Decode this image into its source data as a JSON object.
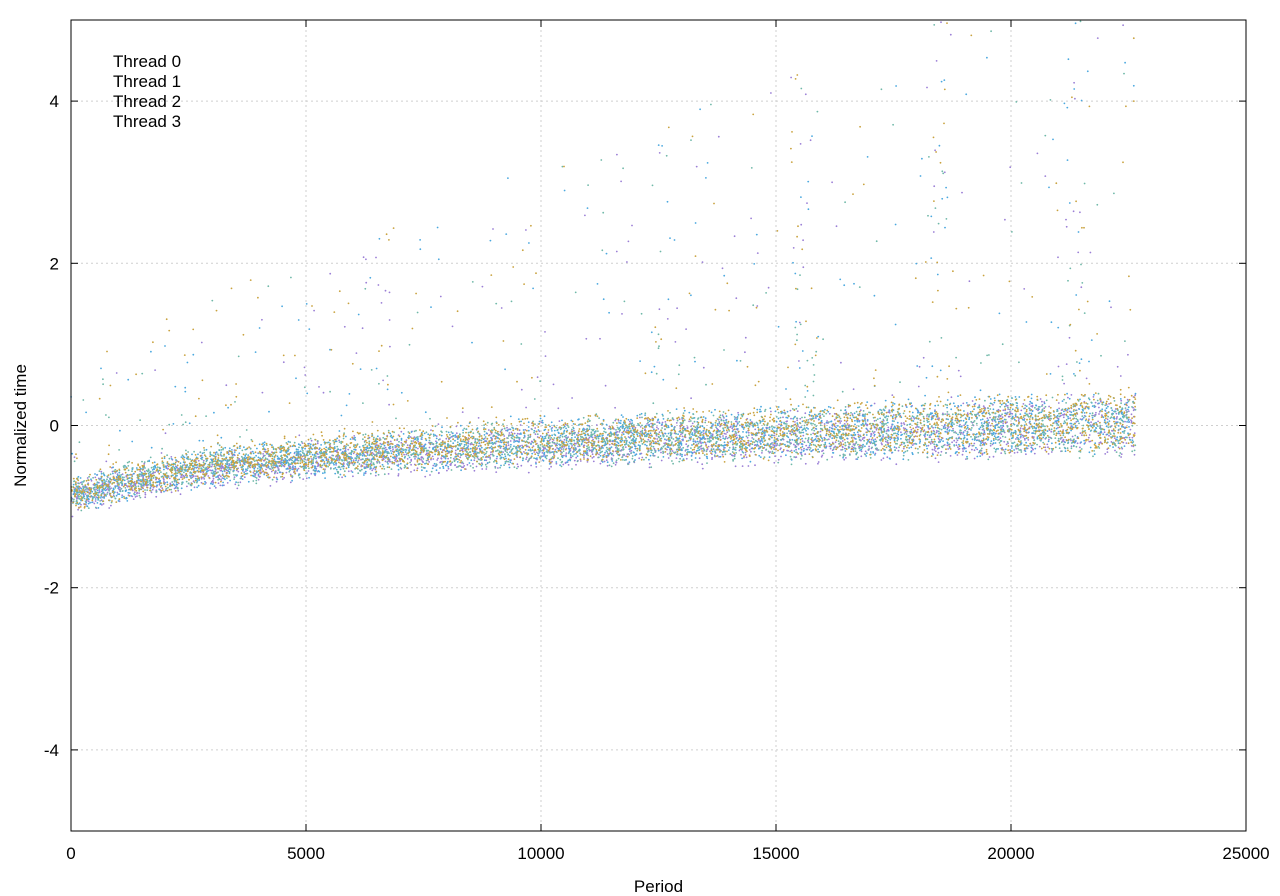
{
  "chart_data": {
    "type": "scatter",
    "title": "",
    "xlabel": "Period",
    "ylabel": "Normalized time",
    "xlim": [
      0,
      25000
    ],
    "ylim": [
      -5,
      5
    ],
    "xticks": [
      0,
      5000,
      10000,
      15000,
      20000,
      25000
    ],
    "yticks": [
      -4,
      -2,
      0,
      2,
      4
    ],
    "grid": true,
    "legend_position": "top-left",
    "x_extent": [
      0,
      22650
    ],
    "series": [
      {
        "name": "Thread 0",
        "color": "#9b7fd6",
        "trend": [
          [
            0,
            -0.9
          ],
          [
            1000,
            -0.75
          ],
          [
            3000,
            -0.55
          ],
          [
            6000,
            -0.4
          ],
          [
            10000,
            -0.25
          ],
          [
            15000,
            -0.15
          ],
          [
            20000,
            -0.05
          ],
          [
            22650,
            0.0
          ]
        ]
      },
      {
        "name": "Thread 1",
        "color": "#4aa8df",
        "trend": [
          [
            0,
            -0.88
          ],
          [
            1000,
            -0.72
          ],
          [
            3000,
            -0.5
          ],
          [
            6000,
            -0.35
          ],
          [
            10000,
            -0.2
          ],
          [
            15000,
            -0.1
          ],
          [
            20000,
            0.0
          ],
          [
            22650,
            0.05
          ]
        ]
      },
      {
        "name": "Thread 2",
        "color": "#6fb8a8",
        "trend": [
          [
            0,
            -0.85
          ],
          [
            1000,
            -0.7
          ],
          [
            3000,
            -0.5
          ],
          [
            6000,
            -0.36
          ],
          [
            10000,
            -0.22
          ],
          [
            15000,
            -0.12
          ],
          [
            20000,
            -0.02
          ],
          [
            22650,
            0.02
          ]
        ]
      },
      {
        "name": "Thread 3",
        "color": "#c9a23e",
        "trend": [
          [
            0,
            -0.85
          ],
          [
            1000,
            -0.7
          ],
          [
            3000,
            -0.48
          ],
          [
            6000,
            -0.32
          ],
          [
            10000,
            -0.18
          ],
          [
            15000,
            -0.08
          ],
          [
            20000,
            0.02
          ],
          [
            22650,
            0.05
          ]
        ]
      }
    ]
  }
}
